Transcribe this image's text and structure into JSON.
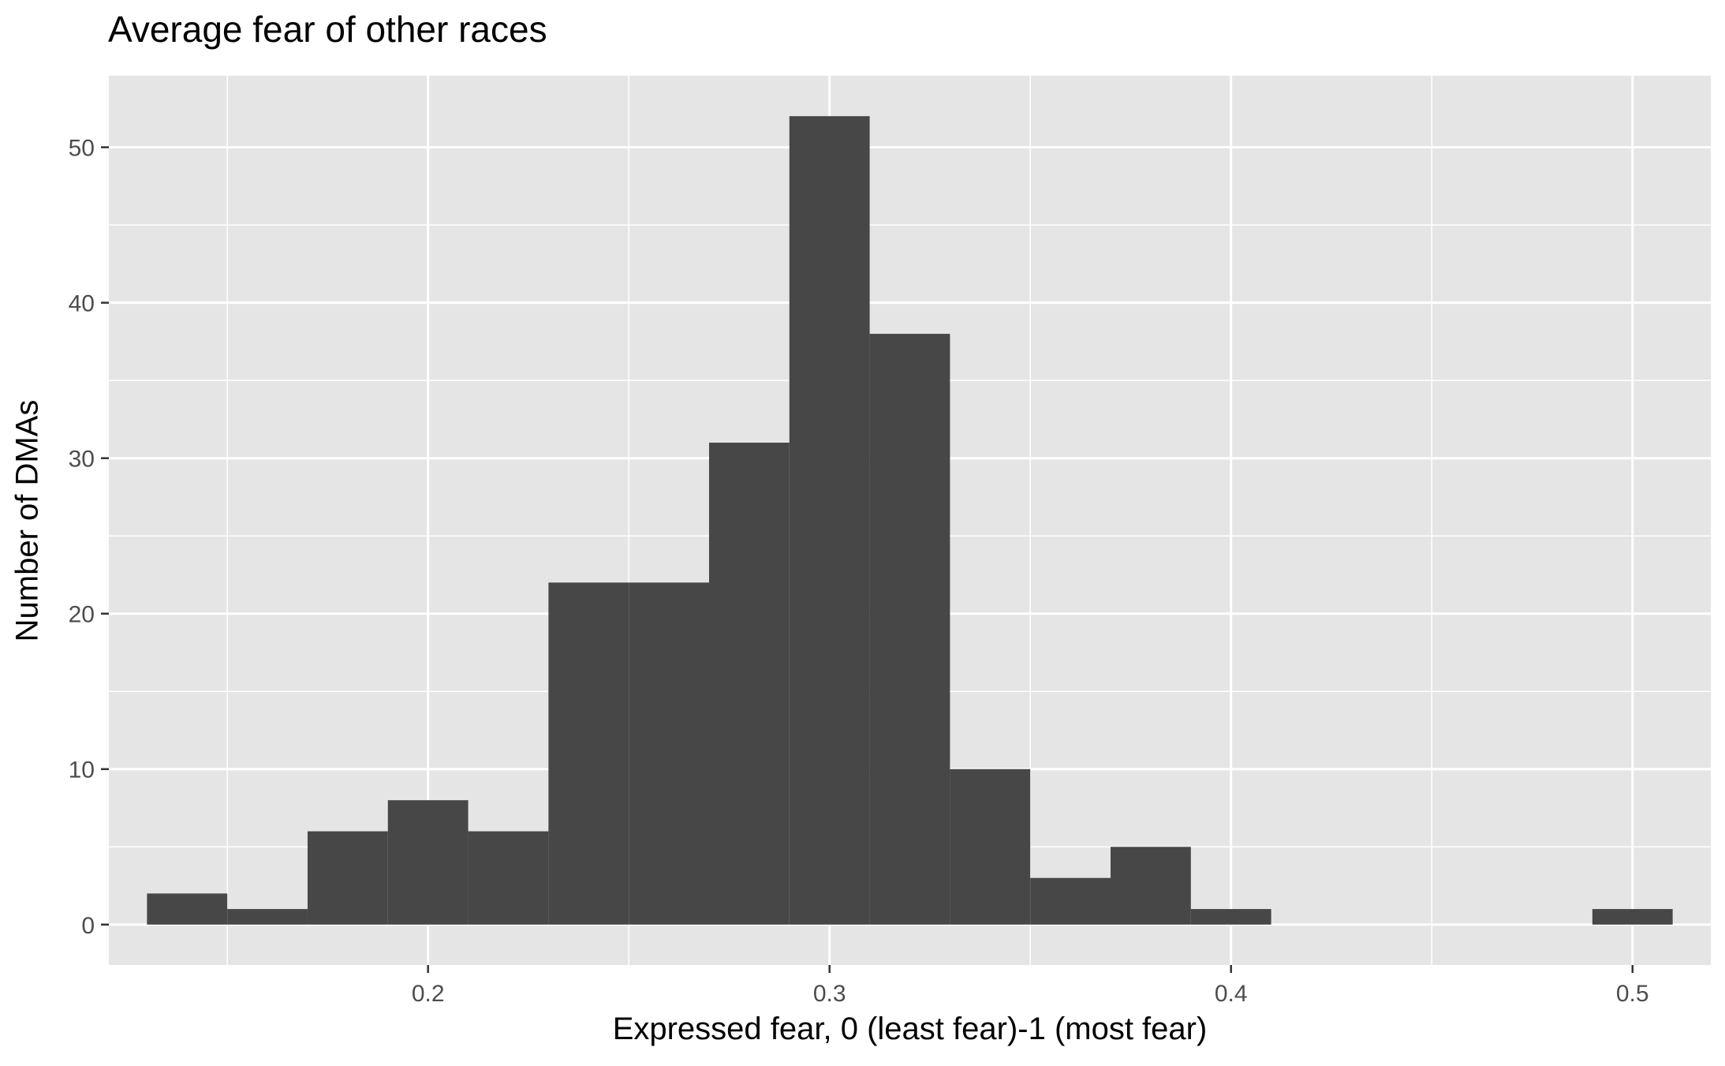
{
  "chart_data": {
    "type": "bar",
    "title": "Average fear of other races",
    "xlabel": "Expressed fear, 0 (least fear)-1 (most fear)",
    "ylabel": "Number of DMAs",
    "bin_width": 0.02,
    "bins": [
      {
        "x_start": 0.13,
        "x_end": 0.15,
        "count": 2
      },
      {
        "x_start": 0.15,
        "x_end": 0.17,
        "count": 1
      },
      {
        "x_start": 0.17,
        "x_end": 0.19,
        "count": 6
      },
      {
        "x_start": 0.19,
        "x_end": 0.21,
        "count": 8
      },
      {
        "x_start": 0.21,
        "x_end": 0.23,
        "count": 6
      },
      {
        "x_start": 0.23,
        "x_end": 0.25,
        "count": 22
      },
      {
        "x_start": 0.25,
        "x_end": 0.27,
        "count": 22
      },
      {
        "x_start": 0.27,
        "x_end": 0.29,
        "count": 31
      },
      {
        "x_start": 0.29,
        "x_end": 0.31,
        "count": 52
      },
      {
        "x_start": 0.31,
        "x_end": 0.33,
        "count": 38
      },
      {
        "x_start": 0.33,
        "x_end": 0.35,
        "count": 10
      },
      {
        "x_start": 0.35,
        "x_end": 0.37,
        "count": 3
      },
      {
        "x_start": 0.37,
        "x_end": 0.39,
        "count": 5
      },
      {
        "x_start": 0.39,
        "x_end": 0.41,
        "count": 1
      },
      {
        "x_start": 0.41,
        "x_end": 0.43,
        "count": 0
      },
      {
        "x_start": 0.43,
        "x_end": 0.45,
        "count": 0
      },
      {
        "x_start": 0.45,
        "x_end": 0.47,
        "count": 0
      },
      {
        "x_start": 0.47,
        "x_end": 0.49,
        "count": 0
      },
      {
        "x_start": 0.49,
        "x_end": 0.51,
        "count": 1
      }
    ],
    "xlim": [
      0.1205,
      0.5195
    ],
    "ylim": [
      -2.6,
      54.6
    ],
    "x_ticks": [
      0.2,
      0.3,
      0.4,
      0.5
    ],
    "x_tick_labels": [
      "0.2",
      "0.3",
      "0.4",
      "0.5"
    ],
    "x_minor_ticks": [
      0.15,
      0.25,
      0.35,
      0.45
    ],
    "y_ticks": [
      0,
      10,
      20,
      30,
      40,
      50
    ],
    "y_tick_labels": [
      "0",
      "10",
      "20",
      "30",
      "40",
      "50"
    ],
    "y_minor_ticks": [
      5,
      15,
      25,
      35,
      45
    ],
    "grid": true,
    "legend": "none",
    "colors": {
      "bar_fill": "#474747",
      "panel_background": "#e5e5e5",
      "grid_line": "#ffffff",
      "tick_label": "#4d4d4d",
      "tick_mark": "#333333",
      "text": "#000000"
    }
  }
}
